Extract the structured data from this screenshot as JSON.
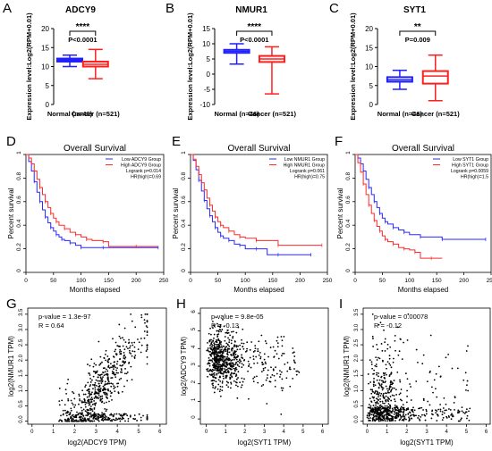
{
  "colors": {
    "normal": "#1f1fff",
    "cancer": "#ff1f1f",
    "axis": "#000000",
    "sig": "#000000",
    "km_low": "#2a2aff",
    "km_high": "#ff2a2a",
    "scatter": "#000000"
  },
  "row1_ylabel": "Expression level:Log2(RPM+0.01)",
  "row2_xlabel": "Months elapsed",
  "row2_ylabel": "Percent survival",
  "chart_data": [
    {
      "panel": "A",
      "type": "box",
      "title": "ADCY9",
      "categories": [
        "Normal (n=46)",
        "Cancer (n=521)"
      ],
      "ylim": [
        0,
        20
      ],
      "yticks": [
        0,
        5,
        10,
        15,
        20
      ],
      "boxes": [
        {
          "min": 10.0,
          "q1": 11.3,
          "median": 11.7,
          "q3": 12.1,
          "max": 13.0
        },
        {
          "min": 6.8,
          "q1": 10.0,
          "median": 10.6,
          "q3": 11.3,
          "max": 14.5
        }
      ],
      "significance": "****",
      "pvalue": "P<0.0001"
    },
    {
      "panel": "B",
      "type": "box",
      "title": "NMUR1",
      "categories": [
        "Normal (n=46)",
        "Cancer (n=521)"
      ],
      "ylim": [
        -10,
        15
      ],
      "yticks": [
        -10,
        -5,
        0,
        5,
        10,
        15
      ],
      "boxes": [
        {
          "min": 3.3,
          "q1": 7.0,
          "median": 7.5,
          "q3": 8.0,
          "max": 10.0
        },
        {
          "min": -6.5,
          "q1": 4.0,
          "median": 5.0,
          "q3": 6.0,
          "max": 9.0
        }
      ],
      "significance": "****",
      "pvalue": "P<0.0001"
    },
    {
      "panel": "C",
      "type": "box",
      "title": "SYT1",
      "categories": [
        "Normal (n=46)",
        "Cancer (n=521)"
      ],
      "ylim": [
        0,
        20
      ],
      "yticks": [
        0,
        5,
        10,
        15,
        20
      ],
      "boxes": [
        {
          "min": 4.0,
          "q1": 6.0,
          "median": 6.5,
          "q3": 7.2,
          "max": 9.0
        },
        {
          "min": 1.0,
          "q1": 5.5,
          "median": 7.5,
          "q3": 8.8,
          "max": 13.0
        }
      ],
      "significance": "**",
      "pvalue": "P=0.009"
    },
    {
      "panel": "D",
      "type": "line",
      "title": "Overall Survival",
      "xlim": [
        0,
        250
      ],
      "xticks": [
        0,
        50,
        100,
        150,
        200,
        250
      ],
      "ylim": [
        0,
        1
      ],
      "yticks": [
        0,
        0.2,
        0.4,
        0.6,
        0.8,
        1
      ],
      "xlabel": "Months elapsed",
      "ylabel": "Percent survival",
      "legend": [
        "Low ADCY9 Group",
        "High ADCY9 Group",
        "Logrank p=0.014",
        "HR(high)=0.69"
      ],
      "series": [
        {
          "name": "Low ADCY9 Group",
          "x": [
            0,
            5,
            10,
            15,
            20,
            25,
            30,
            35,
            40,
            45,
            50,
            55,
            60,
            65,
            70,
            80,
            90,
            100,
            120,
            140,
            160,
            240
          ],
          "y": [
            1,
            0.94,
            0.86,
            0.77,
            0.68,
            0.6,
            0.53,
            0.47,
            0.42,
            0.38,
            0.35,
            0.32,
            0.3,
            0.28,
            0.27,
            0.25,
            0.23,
            0.21,
            0.21,
            0.21,
            0.21,
            0.21
          ]
        },
        {
          "name": "High ADCY9 Group",
          "x": [
            0,
            5,
            10,
            15,
            20,
            25,
            30,
            35,
            40,
            45,
            50,
            55,
            60,
            70,
            80,
            90,
            100,
            110,
            120,
            140,
            150,
            200,
            240
          ],
          "y": [
            1,
            0.97,
            0.92,
            0.86,
            0.79,
            0.72,
            0.66,
            0.6,
            0.55,
            0.5,
            0.46,
            0.43,
            0.4,
            0.37,
            0.34,
            0.32,
            0.3,
            0.28,
            0.27,
            0.26,
            0.22,
            0.22,
            0.22
          ]
        }
      ]
    },
    {
      "panel": "E",
      "type": "line",
      "title": "Overall Survival",
      "xlim": [
        0,
        250
      ],
      "xticks": [
        0,
        50,
        100,
        150,
        200,
        250
      ],
      "ylim": [
        0,
        1
      ],
      "yticks": [
        0,
        0.2,
        0.4,
        0.6,
        0.8,
        1
      ],
      "xlabel": "Months elapsed",
      "ylabel": "Percent survival",
      "legend": [
        "Low NMUR1 Group",
        "High NMUR1 Group",
        "Logrank p=0.061",
        "HR(high)=0.75"
      ],
      "series": [
        {
          "name": "Low NMUR1 Group",
          "x": [
            0,
            5,
            10,
            15,
            20,
            25,
            30,
            35,
            40,
            45,
            50,
            55,
            60,
            70,
            80,
            90,
            100,
            120,
            140,
            160,
            200,
            220
          ],
          "y": [
            1,
            0.95,
            0.87,
            0.78,
            0.69,
            0.61,
            0.54,
            0.48,
            0.43,
            0.38,
            0.34,
            0.31,
            0.29,
            0.27,
            0.24,
            0.23,
            0.2,
            0.2,
            0.15,
            0.15,
            0.15,
            0.15
          ]
        },
        {
          "name": "High NMUR1 Group",
          "x": [
            0,
            5,
            10,
            15,
            20,
            25,
            30,
            35,
            40,
            45,
            50,
            55,
            60,
            70,
            80,
            90,
            100,
            120,
            140,
            160,
            200,
            240
          ],
          "y": [
            1,
            0.96,
            0.9,
            0.83,
            0.76,
            0.7,
            0.63,
            0.57,
            0.52,
            0.47,
            0.43,
            0.4,
            0.38,
            0.35,
            0.32,
            0.3,
            0.29,
            0.27,
            0.27,
            0.23,
            0.23,
            0.23
          ]
        }
      ]
    },
    {
      "panel": "F",
      "type": "line",
      "title": "Overall Survival",
      "xlim": [
        0,
        250
      ],
      "xticks": [
        0,
        50,
        100,
        150,
        200,
        250
      ],
      "ylim": [
        0,
        1
      ],
      "yticks": [
        0,
        0.2,
        0.4,
        0.6,
        0.8,
        1
      ],
      "xlabel": "Months elapsed",
      "ylabel": "Percent survival",
      "legend": [
        "Low SYT1 Group",
        "High SYT1 Group",
        "Logrank p=0.0059",
        "HR(high)=1.5"
      ],
      "series": [
        {
          "name": "Low SYT1 Group",
          "x": [
            0,
            5,
            10,
            15,
            20,
            25,
            30,
            35,
            40,
            45,
            50,
            55,
            60,
            70,
            80,
            90,
            100,
            120,
            140,
            160,
            200,
            240
          ],
          "y": [
            1,
            0.97,
            0.92,
            0.86,
            0.79,
            0.72,
            0.66,
            0.6,
            0.55,
            0.5,
            0.46,
            0.43,
            0.41,
            0.38,
            0.36,
            0.34,
            0.32,
            0.3,
            0.3,
            0.28,
            0.28,
            0.28
          ]
        },
        {
          "name": "High SYT1 Group",
          "x": [
            0,
            5,
            10,
            15,
            20,
            25,
            30,
            35,
            40,
            45,
            50,
            55,
            60,
            70,
            80,
            90,
            100,
            110,
            120,
            140,
            160
          ],
          "y": [
            1,
            0.93,
            0.85,
            0.75,
            0.66,
            0.57,
            0.5,
            0.44,
            0.39,
            0.35,
            0.31,
            0.28,
            0.26,
            0.24,
            0.21,
            0.2,
            0.19,
            0.17,
            0.12,
            0.12,
            0.12
          ]
        }
      ]
    },
    {
      "panel": "G",
      "type": "scatter",
      "xlabel": "log2(ADCY9 TPM)",
      "ylabel": "log2(NMUR1 TPM)",
      "xlim": [
        -0.2,
        6.3
      ],
      "xticks": [
        0,
        1,
        2,
        3,
        4,
        5,
        6
      ],
      "ylim": [
        -0.1,
        3.7
      ],
      "yticks": [
        0.0,
        0.5,
        1.0,
        1.5,
        2.0,
        2.5,
        3.0,
        3.5
      ],
      "annotations": [
        "p-value = 1.3e-97",
        "R = 0.64"
      ],
      "generator": {
        "n": 720,
        "seed": 11,
        "pattern": "positive"
      }
    },
    {
      "panel": "H",
      "type": "scatter",
      "xlabel": "log2(SYT1 TPM)",
      "ylabel": "log2(ADCY9 TPM)",
      "xlim": [
        -0.3,
        6.3
      ],
      "xticks": [
        0,
        1,
        2,
        3,
        4,
        5,
        6
      ],
      "ylim": [
        -0.3,
        6.3
      ],
      "yticks": [
        0,
        1,
        2,
        3,
        4,
        5,
        6
      ],
      "annotations": [
        "p-value = 9.8e-05",
        "R = -0.13"
      ],
      "generator": {
        "n": 720,
        "seed": 23,
        "pattern": "cluster"
      }
    },
    {
      "panel": "I",
      "type": "scatter",
      "xlabel": "log2(SYT1 TPM)",
      "ylabel": "log2(NMUR1 TPM)",
      "xlim": [
        -0.2,
        6.2
      ],
      "xticks": [
        0,
        1,
        2,
        3,
        4,
        5,
        6
      ],
      "ylim": [
        -0.1,
        3.7
      ],
      "yticks": [
        0.0,
        0.5,
        1.0,
        1.5,
        2.0,
        2.5,
        3.0,
        3.5
      ],
      "annotations": [
        "p-value = 0.00078",
        "R = -0.12"
      ],
      "generator": {
        "n": 720,
        "seed": 37,
        "pattern": "lshape"
      }
    }
  ]
}
